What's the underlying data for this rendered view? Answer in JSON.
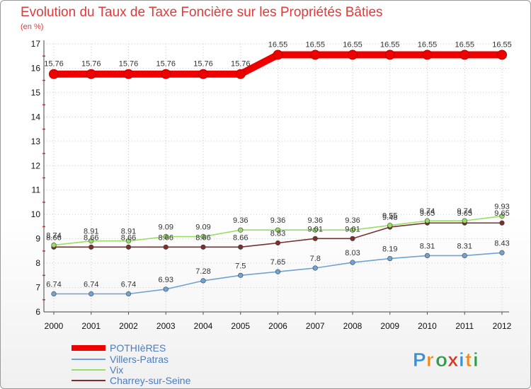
{
  "chart_data": {
    "type": "line",
    "title": "Evolution du Taux de Taxe Foncière sur les Propriétés Bâties",
    "subtitle": "(en %)",
    "x": [
      "2000",
      "2001",
      "2002",
      "2003",
      "2004",
      "2005",
      "2006",
      "2007",
      "2008",
      "2009",
      "2010",
      "2011",
      "2012"
    ],
    "ylim": [
      6,
      17
    ],
    "yticks": [
      6,
      7,
      8,
      9,
      10,
      11,
      12,
      13,
      14,
      15,
      16,
      17
    ],
    "series": [
      {
        "name": "POTHIèRES",
        "color": "#ee0000",
        "values": [
          15.76,
          15.76,
          15.76,
          15.76,
          15.76,
          15.76,
          16.55,
          16.55,
          16.55,
          16.55,
          16.55,
          16.55,
          16.55
        ],
        "labels": [
          "15.76",
          "15.76",
          "15.76",
          "15.76",
          "15.76",
          "15.76",
          "16.55",
          "16.55",
          "16.55",
          "16.55",
          "16.55",
          "16.55",
          "16.55"
        ]
      },
      {
        "name": "Villers-Patras",
        "color": "#6fa3d3",
        "values": [
          6.74,
          6.74,
          6.74,
          6.93,
          7.28,
          7.5,
          7.65,
          7.8,
          8.03,
          8.19,
          8.31,
          8.31,
          8.43
        ],
        "labels": [
          "6.74",
          "6.74",
          "6.74",
          "6.93",
          "7.28",
          "7.5",
          "7.65",
          "7.8",
          "8.03",
          "8.19",
          "8.31",
          "8.31",
          "8.43"
        ]
      },
      {
        "name": "Vix",
        "color": "#99dd66",
        "values": [
          8.74,
          8.91,
          8.91,
          9.09,
          9.09,
          9.36,
          9.36,
          9.36,
          9.36,
          9.55,
          9.74,
          9.74,
          9.93
        ],
        "labels": [
          "8.74",
          "8.91",
          "8.91",
          "9.09",
          "9.09",
          "9.36",
          "9.36",
          "9.36",
          "9.36",
          "9.55",
          "9.74",
          "9.74",
          "9.93"
        ]
      },
      {
        "name": "Charrey-sur-Seine",
        "color": "#7a2e2e",
        "values": [
          8.66,
          8.66,
          8.66,
          8.66,
          8.66,
          8.66,
          8.83,
          9.01,
          9.01,
          9.48,
          9.65,
          9.65,
          9.65
        ],
        "labels": [
          "8.66",
          "8.66",
          "8.66",
          "8.66",
          "8.66",
          "8.66",
          "8.83",
          "9.01",
          "9.01",
          "9.48",
          "9.65",
          "9.65",
          "9.65"
        ]
      }
    ]
  },
  "brand": {
    "letters": [
      "P",
      "r",
      "o",
      "x",
      "i",
      "t",
      "i"
    ],
    "colors": [
      "#3a8fd6",
      "#ef8a1a",
      "#2f9e4a",
      "#d33a2c",
      "#3a8fd6",
      "#ef8a1a",
      "#2f9e4a"
    ]
  }
}
